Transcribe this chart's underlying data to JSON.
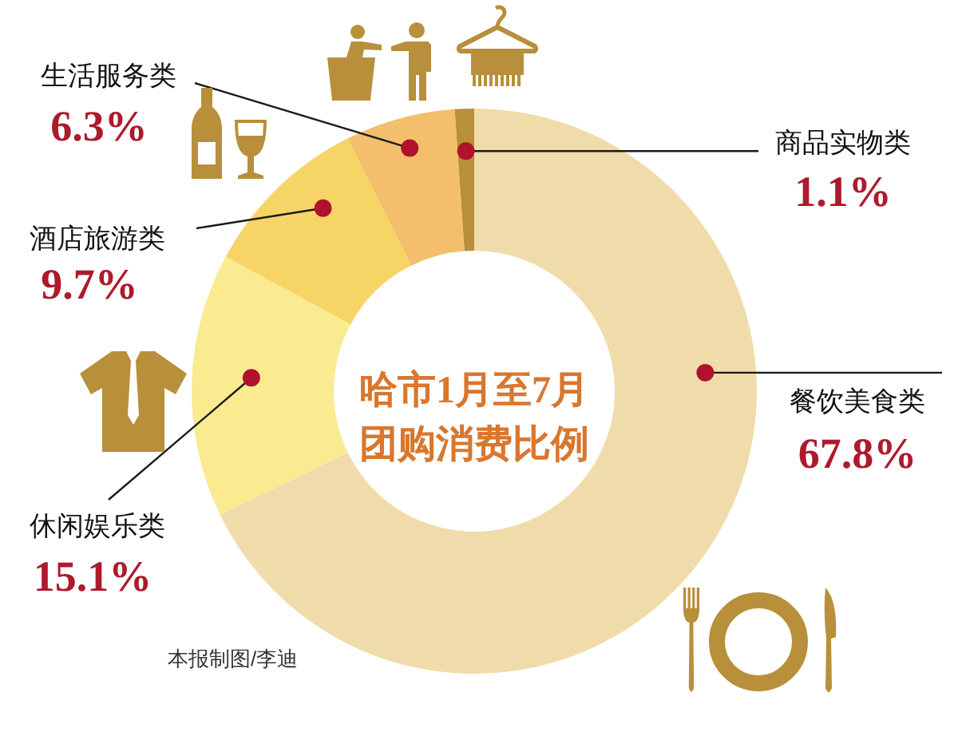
{
  "chart_data": {
    "type": "donut",
    "title": "哈市1月至7月团购消费比例",
    "categories": [
      "餐饮美食类",
      "休闲娱乐类",
      "酒店旅游类",
      "生活服务类",
      "商品实物类"
    ],
    "values": [
      67.8,
      15.1,
      9.7,
      6.3,
      1.1
    ],
    "colors": [
      "#f0dcaa",
      "#faea90",
      "#f6d466",
      "#f3bf6c",
      "#b88f3a"
    ],
    "value_labels": [
      "67.8%",
      "15.1%",
      "9.7%",
      "6.3%",
      "1.1%"
    ],
    "annotations": [
      "本报制图/李迪"
    ]
  }
}
